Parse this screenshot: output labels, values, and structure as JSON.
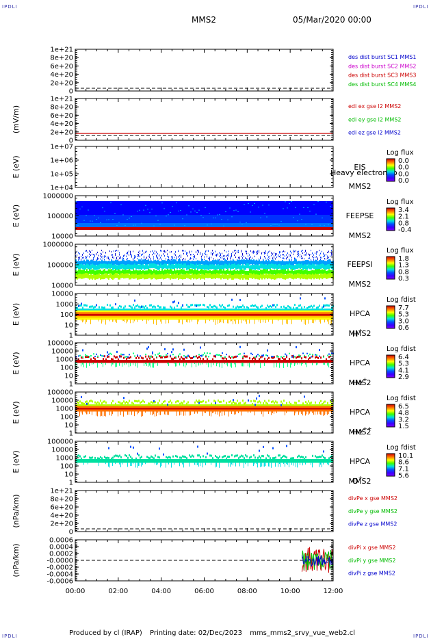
{
  "header": {
    "corner_label": "IPDLI",
    "title": "MMS2",
    "date": "05/Mar/2020 00:00"
  },
  "footer": {
    "produced_by": "Produced by cl (IRAP)",
    "printing_date": "Printing date: 02/Dec/2023",
    "file": "mms_mms2_srvy_vue_web2.cl"
  },
  "x_axis": {
    "range_hours": [
      0,
      12
    ],
    "tick_labels": [
      "00:00",
      "02:00",
      "04:00",
      "06:00",
      "08:00",
      "10:00",
      "12:00"
    ]
  },
  "colors": {
    "blue": "#0000cc",
    "magenta": "#cc00cc",
    "red": "#cc0000",
    "green": "#00bb00",
    "dashed": "#000000"
  },
  "chart_data": [
    {
      "type": "line",
      "id": "des-dist-burst",
      "ylabel": "",
      "yticks": [
        "1e+21",
        "8e+20",
        "6e+20",
        "4e+20",
        "2e+20",
        "0"
      ],
      "ylim": [
        0,
        1e+21
      ],
      "series": [
        {
          "name": "des dist burst SC1 MMS1",
          "color": "#0000cc"
        },
        {
          "name": "des dist burst SC2 MMS2",
          "color": "#cc00cc"
        },
        {
          "name": "des dist burst SC3 MMS3",
          "color": "#cc0000"
        },
        {
          "name": "des dist burst SC4 MMS4",
          "color": "#00bb00"
        }
      ]
    },
    {
      "type": "line",
      "id": "edi-e",
      "ylabel": "(mV/m)",
      "yticks": [
        "1e+21",
        "8e+20",
        "6e+20",
        "4e+20",
        "2e+20",
        "0"
      ],
      "ylim": [
        0,
        1e+21
      ],
      "line_value": 0,
      "series": [
        {
          "name": "edi ex gse l2 MMS2",
          "color": "#cc0000"
        },
        {
          "name": "edi ey gse l2 MMS2",
          "color": "#00bb00"
        },
        {
          "name": "edi ez gse l2 MMS2",
          "color": "#0000cc"
        }
      ]
    },
    {
      "type": "heatmap",
      "id": "eis",
      "ylabel": "E (eV)",
      "yticks": [
        "1e+07",
        "1e+06",
        "1e+05",
        "1e+04"
      ],
      "label_lines": [
        "EIS",
        "MMS2"
      ],
      "overlay_text": "Heavy electron to",
      "colorbar": {
        "title": "Log flux",
        "ticks": [
          "0.0",
          "0.0",
          "0.0",
          "0.0"
        ]
      }
    },
    {
      "type": "heatmap",
      "id": "feepse",
      "ylabel": "E (eV)",
      "yticks": [
        "1000000",
        "100000",
        "10000"
      ],
      "label_lines": [
        "FEEPSE",
        "MMS2"
      ],
      "colorbar": {
        "title": "Log flux",
        "ticks": [
          "3.4",
          "2.1",
          "0.8",
          "-0.4"
        ]
      }
    },
    {
      "type": "heatmap",
      "id": "feepsi",
      "ylabel": "E (eV)",
      "yticks": [
        "1000000",
        "100000",
        "10000"
      ],
      "label_lines": [
        "FEEPSI",
        "MMS2"
      ],
      "colorbar": {
        "title": "Log flux",
        "ticks": [
          "1.8",
          "1.3",
          "0.8",
          "0.3"
        ]
      }
    },
    {
      "type": "heatmap",
      "id": "hpca-h",
      "ylabel": "E (eV)",
      "yticks": [
        "10000",
        "1000",
        "100",
        "10",
        "1"
      ],
      "label_lines": [
        "HPCA",
        "MMS2"
      ],
      "species": {
        "base": "H",
        "sup": "+"
      },
      "colorbar": {
        "title": "Log fdist",
        "ticks": [
          "7.7",
          "5.3",
          "3.0",
          "0.6"
        ]
      }
    },
    {
      "type": "heatmap",
      "id": "hpca-he1",
      "ylabel": "E (eV)",
      "yticks": [
        "100000",
        "10000",
        "1000",
        "100",
        "10",
        "1"
      ],
      "label_lines": [
        "HPCA",
        "MMS2"
      ],
      "species": {
        "base": "He",
        "sup": "+"
      },
      "colorbar": {
        "title": "Log fdist",
        "ticks": [
          "6.4",
          "5.3",
          "4.1",
          "2.9"
        ]
      }
    },
    {
      "type": "heatmap",
      "id": "hpca-he2",
      "ylabel": "E (eV)",
      "yticks": [
        "100000",
        "10000",
        "1000",
        "100",
        "10",
        "1"
      ],
      "label_lines": [
        "HPCA",
        "MMS2"
      ],
      "species": {
        "base": "He",
        "sup": "++"
      },
      "colorbar": {
        "title": "Log fdist",
        "ticks": [
          "6.5",
          "4.8",
          "3.2",
          "1.5"
        ]
      }
    },
    {
      "type": "heatmap",
      "id": "hpca-o",
      "ylabel": "E (eV)",
      "yticks": [
        "100000",
        "10000",
        "1000",
        "100",
        "10",
        "1"
      ],
      "label_lines": [
        "HPCA",
        "MMS2"
      ],
      "species": {
        "base": "O",
        "sup": "+"
      },
      "colorbar": {
        "title": "Log fdist",
        "ticks": [
          "10.1",
          "8.6",
          "7.1",
          "5.6"
        ]
      }
    },
    {
      "type": "line",
      "id": "divpe",
      "ylabel": "(nPa/km)",
      "yticks": [
        "1e+21",
        "8e+20",
        "6e+20",
        "4e+20",
        "2e+20",
        "0"
      ],
      "ylim": [
        0,
        1e+21
      ],
      "series": [
        {
          "name": "divPe x gse MMS2",
          "color": "#cc0000"
        },
        {
          "name": "divPe y gse MMS2",
          "color": "#00bb00"
        },
        {
          "name": "divPe z gse MMS2",
          "color": "#0000cc"
        }
      ]
    },
    {
      "type": "line",
      "id": "divpi",
      "ylabel": "(nPa/km)",
      "yticks": [
        "0.0006",
        "0.0004",
        "0.0002",
        "-0.0000",
        "-0.0002",
        "-0.0004",
        "-0.0006"
      ],
      "ylim": [
        -0.0007,
        0.0007
      ],
      "data_start_hour": 10.55,
      "amplitude": 0.00045,
      "series": [
        {
          "name": "divPi x gse MMS2",
          "color": "#cc0000"
        },
        {
          "name": "divPi y gse MMS2",
          "color": "#00bb00"
        },
        {
          "name": "divPi z gse MMS2",
          "color": "#0000cc"
        }
      ]
    }
  ]
}
